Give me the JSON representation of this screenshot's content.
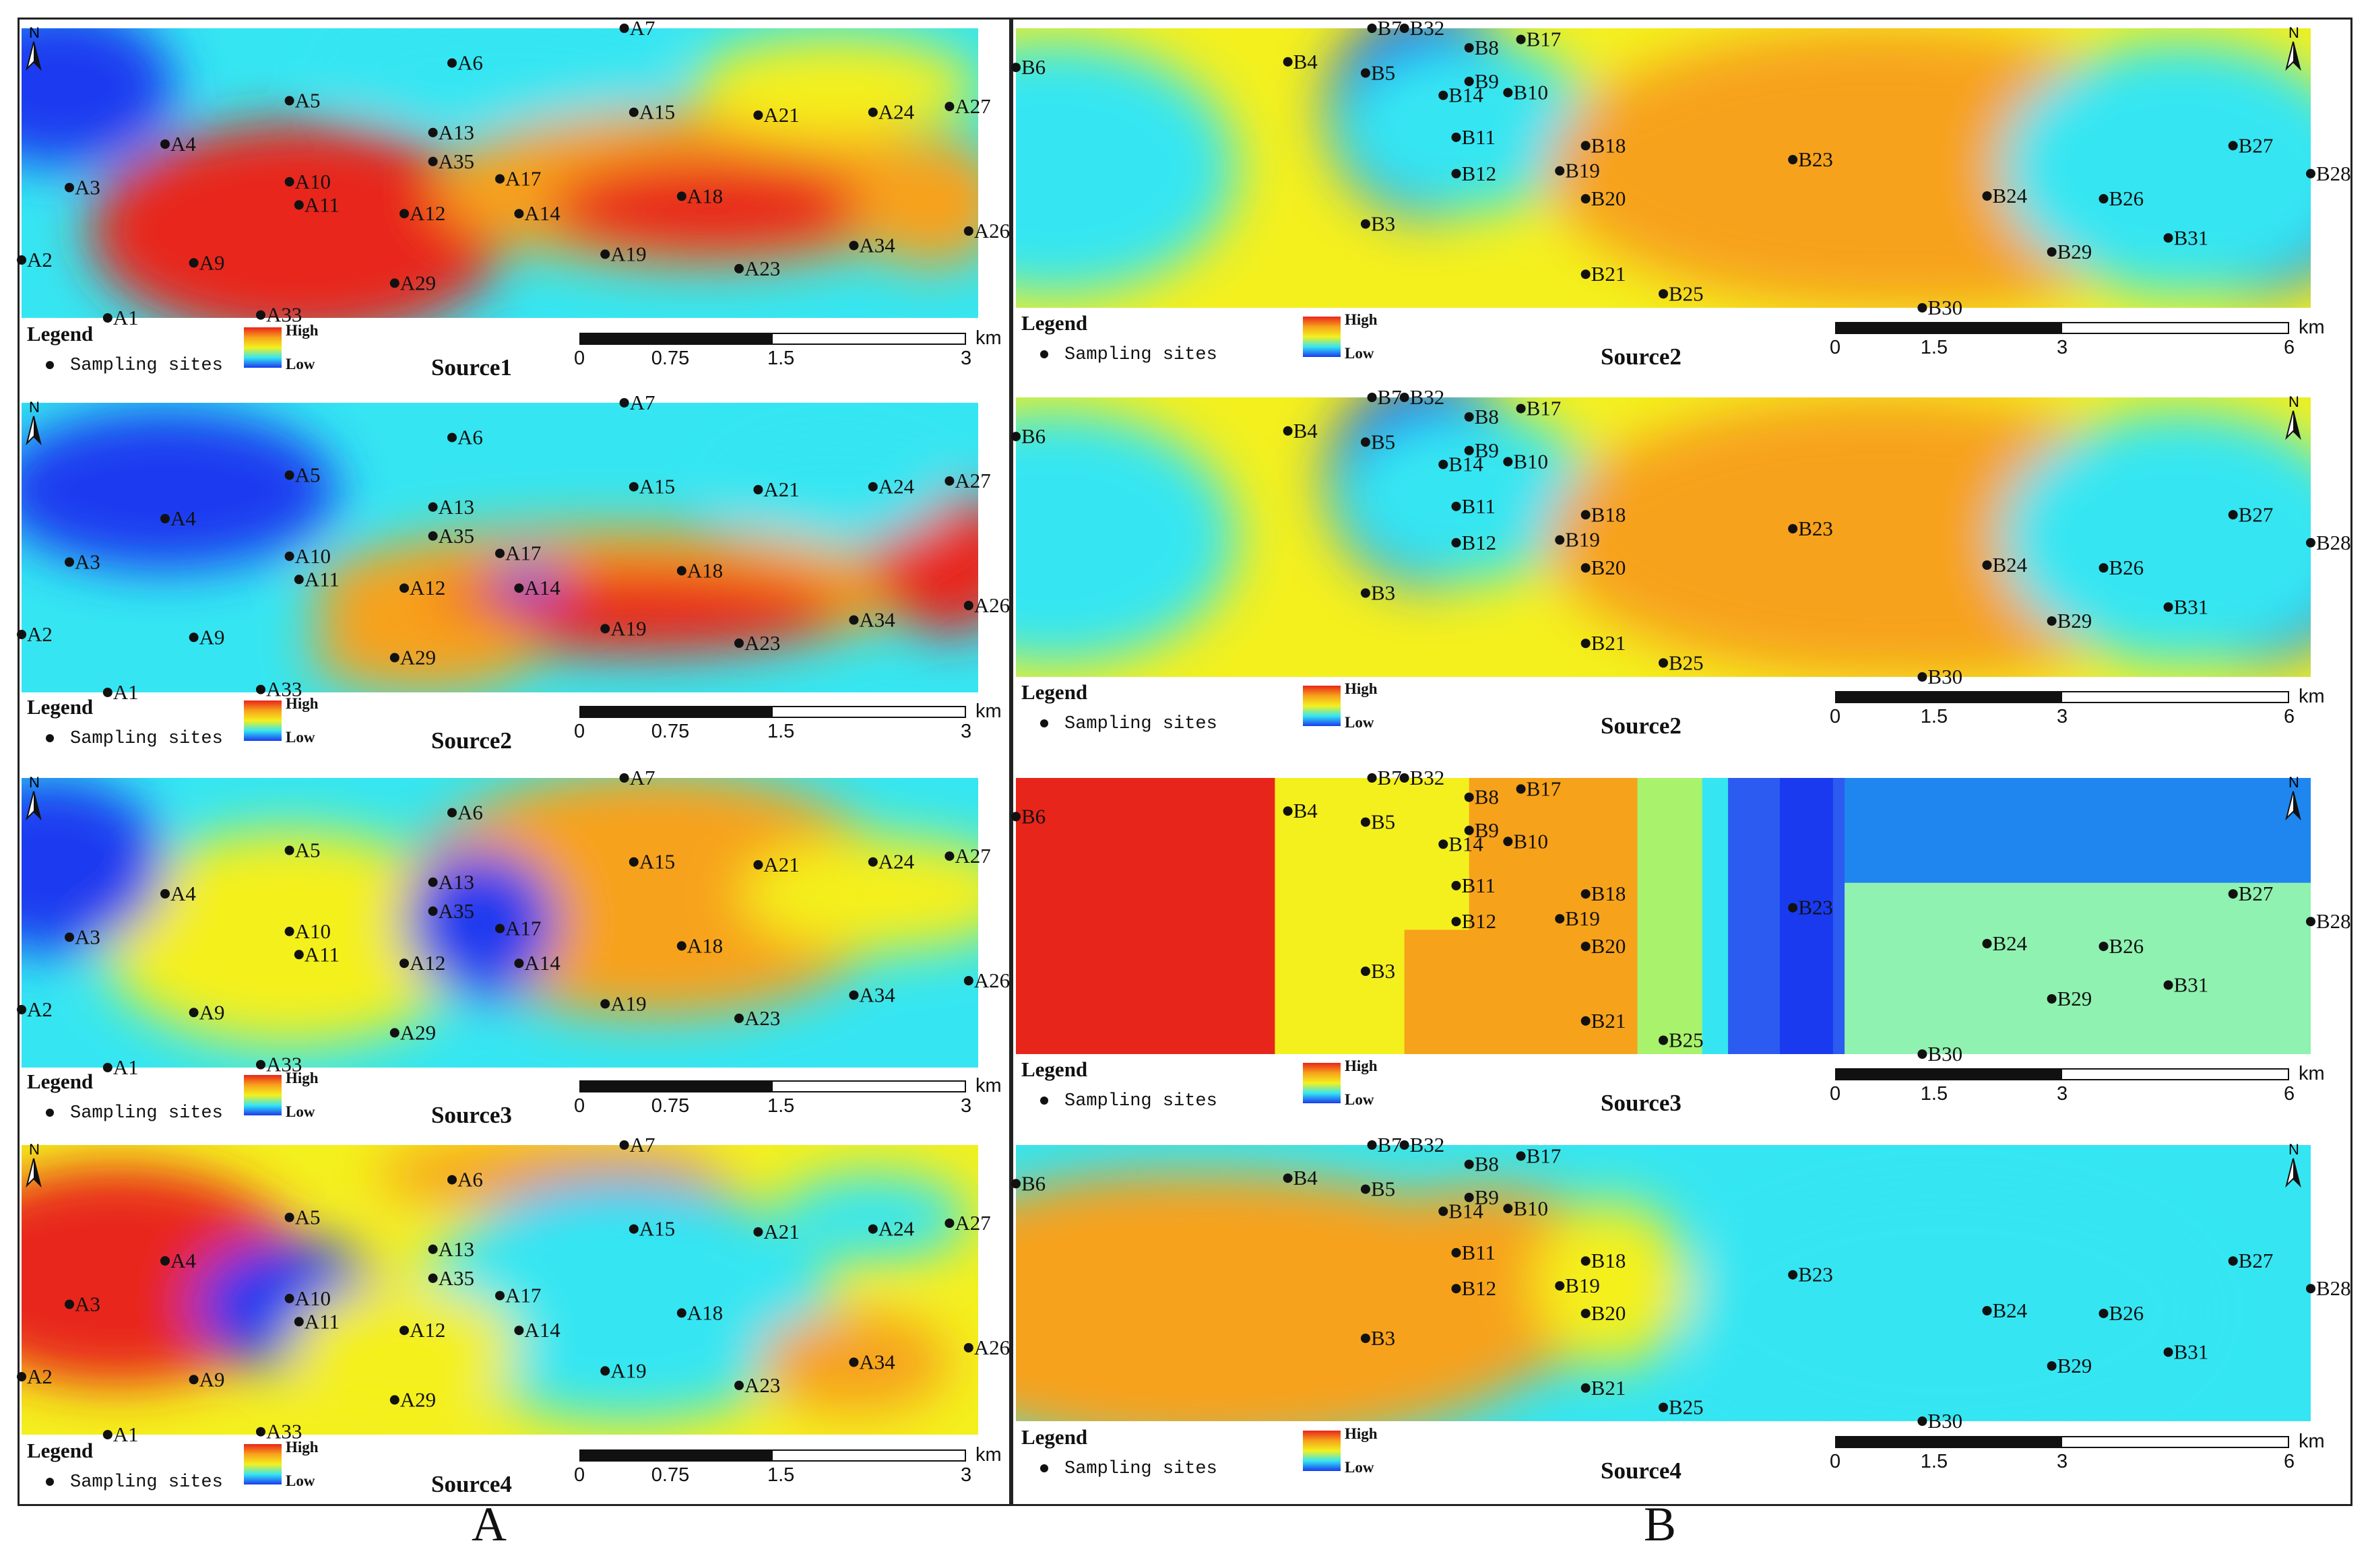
{
  "figure": {
    "panel_a_label": "A",
    "panel_b_label": "B"
  },
  "legend": {
    "title": "Legend",
    "sites": "Sampling sites",
    "high": "High",
    "low": "Low",
    "north": "N"
  },
  "scale_a": {
    "ticks": [
      "0",
      "0.75",
      "1.5",
      "3"
    ],
    "unit": "km"
  },
  "scale_b": {
    "ticks": [
      "0",
      "1.5",
      "3",
      "6"
    ],
    "unit": "km"
  },
  "panel_a": [
    {
      "title": "Source1"
    },
    {
      "title": "Source2"
    },
    {
      "title": "Source3"
    },
    {
      "title": "Source4"
    }
  ],
  "panel_b": [
    {
      "title": "Source2"
    },
    {
      "title": "Source2"
    },
    {
      "title": "Source3"
    },
    {
      "title": "Source4"
    }
  ],
  "sites_a": [
    "A1",
    "A2",
    "A3",
    "A4",
    "A5",
    "A6",
    "A7",
    "A9",
    "A10",
    "A11",
    "A12",
    "A13",
    "A14",
    "A15",
    "A17",
    "A18",
    "A19",
    "A21",
    "A23",
    "A24",
    "A26",
    "A27",
    "A29",
    "A33",
    "A34",
    "A35"
  ],
  "sites_b": [
    "B3",
    "B4",
    "B5",
    "B6",
    "B7",
    "B8",
    "B9",
    "B10",
    "B11",
    "B12",
    "B14",
    "B17",
    "B18",
    "B19",
    "B20",
    "B21",
    "B23",
    "B24",
    "B25",
    "B26",
    "B27",
    "B28",
    "B29",
    "B30",
    "B31",
    "B32"
  ],
  "colors": {
    "high": "#e8251a",
    "mid_high": "#f7a21b",
    "mid": "#f4f01e",
    "mid_low": "#35e6f2",
    "low": "#1a3af0"
  }
}
